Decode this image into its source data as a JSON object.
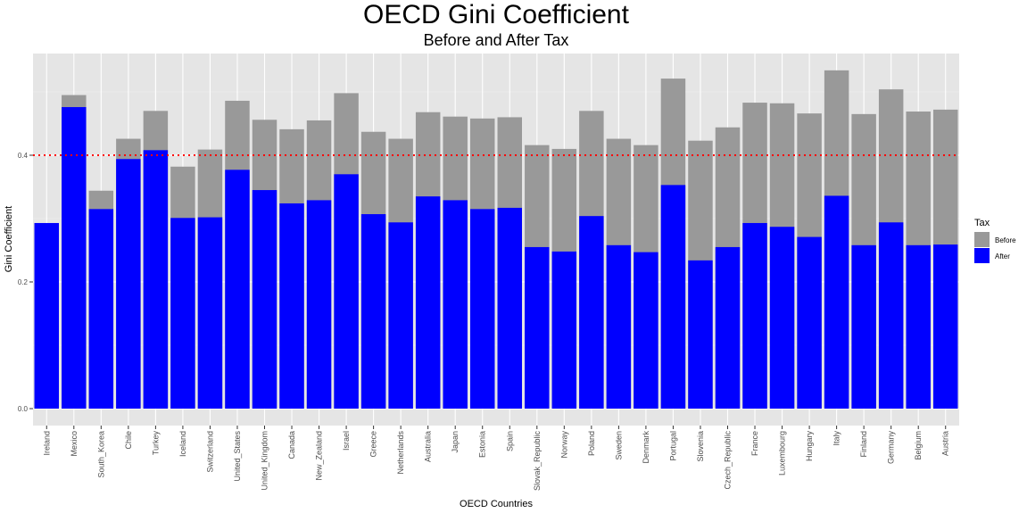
{
  "chart_data": {
    "type": "bar",
    "title": "OECD Gini Coefficient",
    "subtitle": "Before and After Tax",
    "xlabel": "OECD Countries",
    "ylabel": "Gini Coefficient",
    "ylim": [
      0,
      0.55
    ],
    "yticks": [
      0.0,
      0.2,
      0.4
    ],
    "ytick_labels": [
      "0.0",
      "0.2",
      "0.4"
    ],
    "grid": true,
    "reference_line": {
      "value": 0.4,
      "color": "#ff0000",
      "style": "dotted"
    },
    "legend": {
      "title": "Tax",
      "placement": "right"
    },
    "categories": [
      "Ireland",
      "Mexico",
      "South_Korea",
      "Chile",
      "Turkey",
      "Iceland",
      "Switzerland",
      "United_States",
      "United_Kingdom",
      "Canada",
      "New_Zealand",
      "Israel",
      "Greece",
      "Netherlands",
      "Australia",
      "Japan",
      "Estonia",
      "Spain",
      "Slovak_Republic",
      "Norway",
      "Poland",
      "Sweden",
      "Denmark",
      "Portugal",
      "Slovenia",
      "Czech_Republic",
      "France",
      "Luxembourg",
      "Hungary",
      "Italy",
      "Finland",
      "Germany",
      "Belgium",
      "Austria"
    ],
    "series": [
      {
        "name": "Before",
        "color": "#999999",
        "values": [
          0.0,
          0.495,
          0.344,
          0.426,
          0.47,
          0.382,
          0.409,
          0.486,
          0.456,
          0.441,
          0.455,
          0.498,
          0.437,
          0.426,
          0.468,
          0.461,
          0.458,
          0.46,
          0.416,
          0.41,
          0.47,
          0.426,
          0.416,
          0.521,
          0.423,
          0.444,
          0.483,
          0.482,
          0.466,
          0.534,
          0.465,
          0.504,
          0.469,
          0.472
        ]
      },
      {
        "name": "After",
        "color": "#0000ff",
        "values": [
          0.293,
          0.476,
          0.315,
          0.394,
          0.408,
          0.301,
          0.302,
          0.377,
          0.345,
          0.324,
          0.329,
          0.37,
          0.307,
          0.294,
          0.335,
          0.329,
          0.315,
          0.317,
          0.255,
          0.248,
          0.304,
          0.258,
          0.247,
          0.353,
          0.234,
          0.255,
          0.293,
          0.287,
          0.271,
          0.336,
          0.258,
          0.294,
          0.258,
          0.259
        ]
      }
    ]
  }
}
